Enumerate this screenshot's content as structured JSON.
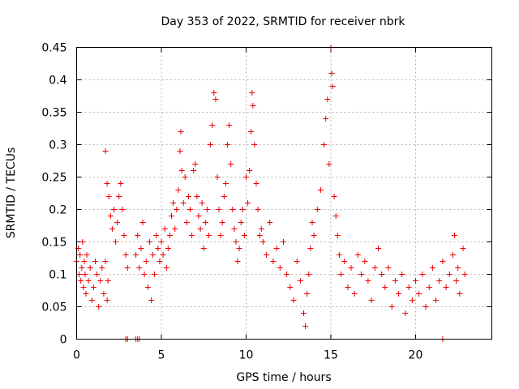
{
  "chart_data": {
    "type": "scatter",
    "title": "Day 353 of 2022, SRMTID for receiver nbrk",
    "xlabel": "GPS time / hours",
    "ylabel": "SRMTID / TECUs",
    "xlim": [
      0,
      24.5
    ],
    "ylim": [
      0,
      0.45
    ],
    "xticks": [
      "0",
      "5",
      "10",
      "15",
      "20"
    ],
    "yticks": [
      "0",
      "0.05",
      "0.1",
      "0.15",
      "0.2",
      "0.25",
      "0.3",
      "0.35",
      "0.4",
      "0.45"
    ],
    "grid": true,
    "marker": "plus",
    "color": "#ee0000",
    "series": [
      {
        "name": "nbrk",
        "points": [
          [
            0.0,
            0.12
          ],
          [
            0.1,
            0.14
          ],
          [
            0.15,
            0.1
          ],
          [
            0.2,
            0.13
          ],
          [
            0.25,
            0.09
          ],
          [
            0.3,
            0.11
          ],
          [
            0.35,
            0.15
          ],
          [
            0.4,
            0.08
          ],
          [
            0.45,
            0.12
          ],
          [
            0.5,
            0.1
          ],
          [
            0.55,
            0.07
          ],
          [
            0.6,
            0.13
          ],
          [
            0.7,
            0.09
          ],
          [
            0.8,
            0.11
          ],
          [
            0.9,
            0.06
          ],
          [
            1.0,
            0.08
          ],
          [
            1.1,
            0.12
          ],
          [
            1.2,
            0.1
          ],
          [
            1.3,
            0.05
          ],
          [
            1.4,
            0.09
          ],
          [
            1.5,
            0.11
          ],
          [
            1.6,
            0.07
          ],
          [
            1.7,
            0.12
          ],
          [
            1.8,
            0.06
          ],
          [
            1.85,
            0.09
          ],
          [
            1.7,
            0.29
          ],
          [
            1.8,
            0.24
          ],
          [
            1.9,
            0.22
          ],
          [
            2.0,
            0.19
          ],
          [
            2.1,
            0.17
          ],
          [
            2.2,
            0.2
          ],
          [
            2.3,
            0.15
          ],
          [
            2.4,
            0.18
          ],
          [
            2.5,
            0.22
          ],
          [
            2.6,
            0.24
          ],
          [
            2.7,
            0.2
          ],
          [
            2.8,
            0.16
          ],
          [
            2.9,
            0.13
          ],
          [
            3.0,
            0.11
          ],
          [
            3.5,
            0.13
          ],
          [
            3.6,
            0.16
          ],
          [
            3.7,
            0.11
          ],
          [
            3.8,
            0.14
          ],
          [
            3.9,
            0.18
          ],
          [
            4.0,
            0.1
          ],
          [
            4.1,
            0.12
          ],
          [
            4.2,
            0.08
          ],
          [
            4.3,
            0.15
          ],
          [
            4.4,
            0.06
          ],
          [
            4.5,
            0.13
          ],
          [
            4.6,
            0.1
          ],
          [
            4.7,
            0.16
          ],
          [
            4.8,
            0.14
          ],
          [
            4.9,
            0.12
          ],
          [
            5.0,
            0.15
          ],
          [
            5.1,
            0.13
          ],
          [
            5.2,
            0.17
          ],
          [
            5.3,
            0.11
          ],
          [
            5.4,
            0.14
          ],
          [
            5.5,
            0.16
          ],
          [
            5.6,
            0.19
          ],
          [
            5.7,
            0.21
          ],
          [
            5.8,
            0.17
          ],
          [
            5.9,
            0.2
          ],
          [
            6.0,
            0.23
          ],
          [
            6.1,
            0.29
          ],
          [
            6.15,
            0.32
          ],
          [
            6.2,
            0.26
          ],
          [
            6.3,
            0.21
          ],
          [
            6.4,
            0.25
          ],
          [
            6.5,
            0.18
          ],
          [
            6.6,
            0.22
          ],
          [
            6.7,
            0.2
          ],
          [
            6.8,
            0.16
          ],
          [
            6.9,
            0.26
          ],
          [
            7.0,
            0.27
          ],
          [
            7.1,
            0.22
          ],
          [
            7.2,
            0.19
          ],
          [
            7.3,
            0.17
          ],
          [
            7.4,
            0.21
          ],
          [
            7.5,
            0.14
          ],
          [
            7.6,
            0.18
          ],
          [
            7.7,
            0.2
          ],
          [
            7.8,
            0.16
          ],
          [
            7.9,
            0.3
          ],
          [
            8.0,
            0.33
          ],
          [
            8.1,
            0.38
          ],
          [
            8.2,
            0.37
          ],
          [
            8.3,
            0.25
          ],
          [
            8.4,
            0.2
          ],
          [
            8.5,
            0.16
          ],
          [
            8.6,
            0.18
          ],
          [
            8.7,
            0.22
          ],
          [
            8.8,
            0.24
          ],
          [
            8.9,
            0.3
          ],
          [
            9.0,
            0.33
          ],
          [
            9.1,
            0.27
          ],
          [
            9.2,
            0.2
          ],
          [
            9.3,
            0.17
          ],
          [
            9.4,
            0.15
          ],
          [
            9.5,
            0.12
          ],
          [
            9.6,
            0.14
          ],
          [
            9.7,
            0.18
          ],
          [
            9.8,
            0.2
          ],
          [
            9.9,
            0.16
          ],
          [
            10.0,
            0.25
          ],
          [
            10.1,
            0.21
          ],
          [
            10.2,
            0.26
          ],
          [
            10.3,
            0.32
          ],
          [
            10.35,
            0.38
          ],
          [
            10.4,
            0.36
          ],
          [
            10.5,
            0.3
          ],
          [
            10.6,
            0.24
          ],
          [
            10.7,
            0.2
          ],
          [
            10.8,
            0.16
          ],
          [
            10.9,
            0.17
          ],
          [
            11.0,
            0.15
          ],
          [
            11.2,
            0.13
          ],
          [
            11.4,
            0.18
          ],
          [
            11.6,
            0.12
          ],
          [
            11.8,
            0.14
          ],
          [
            12.0,
            0.11
          ],
          [
            12.2,
            0.15
          ],
          [
            12.4,
            0.1
          ],
          [
            12.6,
            0.08
          ],
          [
            12.8,
            0.06
          ],
          [
            13.0,
            0.12
          ],
          [
            13.2,
            0.09
          ],
          [
            13.4,
            0.04
          ],
          [
            13.5,
            0.02
          ],
          [
            13.6,
            0.07
          ],
          [
            13.7,
            0.1
          ],
          [
            13.8,
            0.14
          ],
          [
            13.9,
            0.18
          ],
          [
            14.0,
            0.16
          ],
          [
            14.2,
            0.2
          ],
          [
            14.4,
            0.23
          ],
          [
            14.6,
            0.3
          ],
          [
            14.7,
            0.34
          ],
          [
            14.8,
            0.37
          ],
          [
            14.9,
            0.27
          ],
          [
            15.0,
            0.45
          ],
          [
            15.05,
            0.41
          ],
          [
            15.1,
            0.39
          ],
          [
            15.2,
            0.22
          ],
          [
            15.3,
            0.19
          ],
          [
            15.4,
            0.16
          ],
          [
            15.5,
            0.13
          ],
          [
            15.6,
            0.1
          ],
          [
            15.8,
            0.12
          ],
          [
            16.0,
            0.08
          ],
          [
            16.2,
            0.11
          ],
          [
            16.4,
            0.07
          ],
          [
            16.6,
            0.13
          ],
          [
            16.8,
            0.1
          ],
          [
            17.0,
            0.12
          ],
          [
            17.2,
            0.09
          ],
          [
            17.4,
            0.06
          ],
          [
            17.6,
            0.11
          ],
          [
            17.8,
            0.14
          ],
          [
            18.0,
            0.1
          ],
          [
            18.2,
            0.08
          ],
          [
            18.4,
            0.11
          ],
          [
            18.6,
            0.05
          ],
          [
            18.8,
            0.09
          ],
          [
            19.0,
            0.07
          ],
          [
            19.2,
            0.1
          ],
          [
            19.4,
            0.04
          ],
          [
            19.6,
            0.08
          ],
          [
            19.8,
            0.06
          ],
          [
            20.0,
            0.09
          ],
          [
            20.2,
            0.07
          ],
          [
            20.4,
            0.1
          ],
          [
            20.6,
            0.05
          ],
          [
            20.8,
            0.08
          ],
          [
            21.0,
            0.11
          ],
          [
            21.2,
            0.06
          ],
          [
            21.4,
            0.09
          ],
          [
            21.6,
            0.12
          ],
          [
            21.8,
            0.08
          ],
          [
            22.0,
            0.1
          ],
          [
            22.2,
            0.13
          ],
          [
            22.3,
            0.16
          ],
          [
            22.4,
            0.09
          ],
          [
            22.5,
            0.11
          ],
          [
            22.6,
            0.07
          ],
          [
            22.8,
            0.14
          ],
          [
            22.9,
            0.1
          ],
          [
            2.9,
            0.0
          ],
          [
            3.0,
            0.0
          ],
          [
            3.5,
            0.0
          ],
          [
            3.6,
            0.0
          ],
          [
            3.7,
            0.0
          ],
          [
            21.6,
            0.0
          ]
        ]
      }
    ]
  }
}
